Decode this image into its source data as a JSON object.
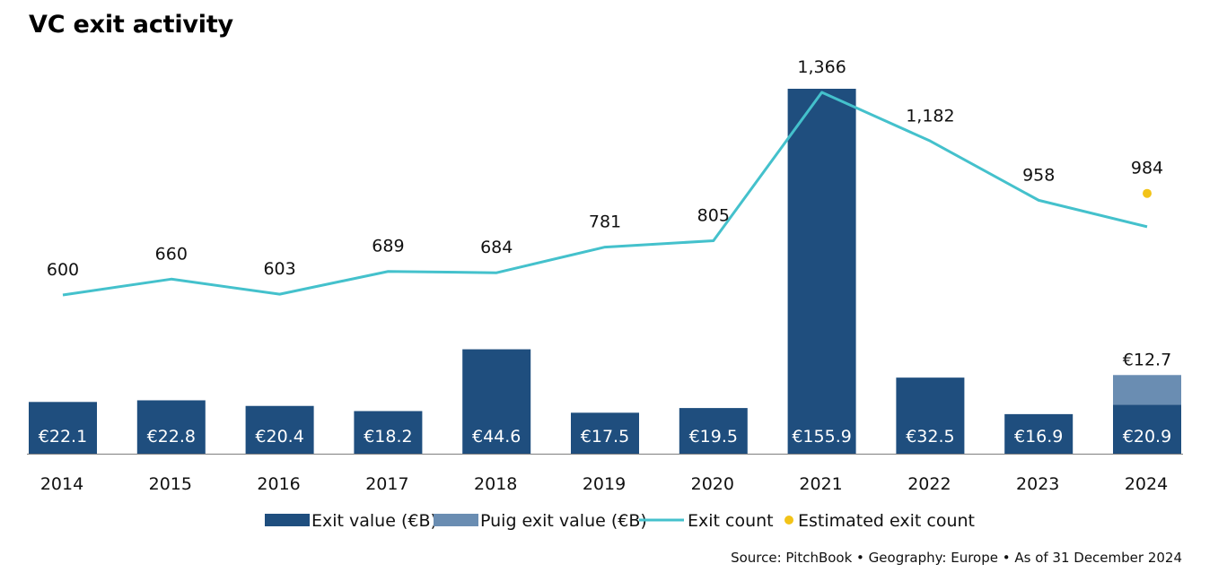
{
  "chart_data": {
    "type": "bar",
    "title": "VC exit activity",
    "categories": [
      "2014",
      "2015",
      "2016",
      "2017",
      "2018",
      "2019",
      "2020",
      "2021",
      "2022",
      "2023",
      "2024"
    ],
    "series": [
      {
        "name": "Exit value (€B)",
        "kind": "bar",
        "color": "#1f4e7e",
        "values": [
          22.1,
          22.8,
          20.4,
          18.2,
          44.6,
          17.5,
          19.5,
          155.9,
          32.5,
          16.9,
          20.9
        ],
        "labels": [
          "€22.1",
          "€22.8",
          "€20.4",
          "€18.2",
          "€44.6",
          "€17.5",
          "€19.5",
          "€155.9",
          "€32.5",
          "€16.9",
          "€20.9"
        ]
      },
      {
        "name": "Puig exit value (€B)",
        "kind": "bar-stacked",
        "color": "#6a8db2",
        "values": [
          null,
          null,
          null,
          null,
          null,
          null,
          null,
          null,
          null,
          null,
          12.7
        ],
        "labels": [
          "",
          "",
          "",
          "",
          "",
          "",
          "",
          "",
          "",
          "",
          "€12.7"
        ]
      },
      {
        "name": "Exit count",
        "kind": "line",
        "color": "#44c1cc",
        "values": [
          600,
          660,
          603,
          689,
          684,
          781,
          805,
          1366,
          1182,
          958,
          858
        ]
      },
      {
        "name": "Estimated exit count",
        "kind": "point",
        "color": "#f2c318",
        "values": [
          null,
          null,
          null,
          null,
          null,
          null,
          null,
          null,
          null,
          null,
          984
        ]
      }
    ],
    "count_labels": [
      "600",
      "660",
      "603",
      "689",
      "684",
      "781",
      "805",
      "1,366",
      "1,182",
      "958",
      "984"
    ],
    "bar_ylim": [
      0,
      155.9
    ],
    "count_ylim": [
      0,
      1366
    ],
    "legend_position": "bottom",
    "grid": false
  },
  "source_text": "Source: PitchBook  •  Geography: Europe  •  As of 31 December 2024"
}
